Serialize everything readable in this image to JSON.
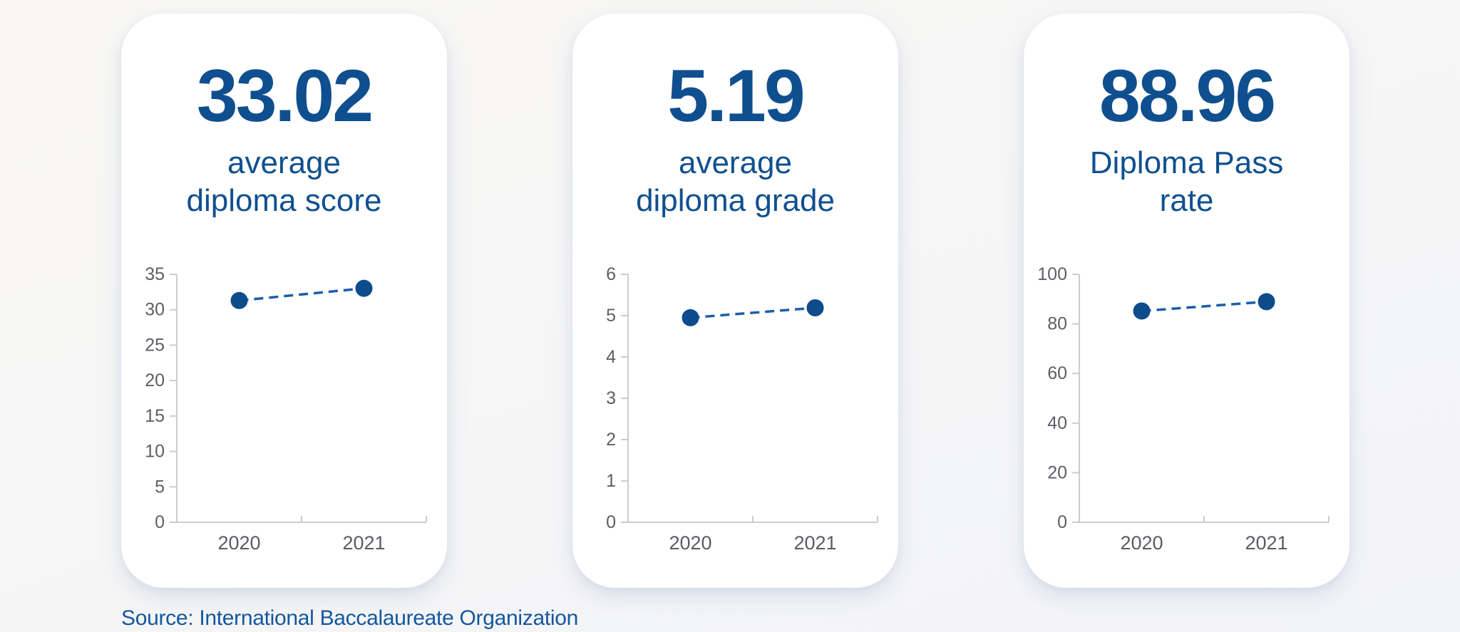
{
  "colors": {
    "accent_dot": "#0d4b8c",
    "dash_line": "#1a5fa8",
    "axis": "#c9cdd3",
    "tick_label": "#5c5f64",
    "headline_blue": "#0f4f8f",
    "card_background": "#ffffff",
    "page_background": "#f7f6f4",
    "source_text": "#1457a0"
  },
  "cards": [
    {
      "value": "33.02",
      "label": "average\ndiploma score"
    },
    {
      "value": "5.19",
      "label": "average\ndiploma grade"
    },
    {
      "value": "88.96",
      "label": "Diploma Pass\nrate"
    }
  ],
  "chart_data": [
    {
      "type": "scatter",
      "title": "average diploma score",
      "x": [
        "2020",
        "2021"
      ],
      "values": [
        31.3,
        33.02
      ],
      "ylim": [
        0,
        35
      ],
      "yticks": [
        0,
        5,
        10,
        15,
        20,
        25,
        30,
        35
      ],
      "line_style": "dashed",
      "grid": false,
      "legend": "none"
    },
    {
      "type": "scatter",
      "title": "average diploma grade",
      "x": [
        "2020",
        "2021"
      ],
      "values": [
        4.95,
        5.19
      ],
      "ylim": [
        0,
        6
      ],
      "yticks": [
        0,
        1,
        2,
        3,
        4,
        5,
        6
      ],
      "line_style": "dashed",
      "grid": false,
      "legend": "none"
    },
    {
      "type": "scatter",
      "title": "Diploma Pass rate",
      "x": [
        "2020",
        "2021"
      ],
      "values": [
        85.2,
        88.96
      ],
      "ylim": [
        0,
        100
      ],
      "yticks": [
        0,
        20,
        40,
        60,
        80,
        100
      ],
      "line_style": "dashed",
      "grid": false,
      "legend": "none"
    }
  ],
  "source": {
    "label": "Source: International Baccalaureate Organization"
  }
}
